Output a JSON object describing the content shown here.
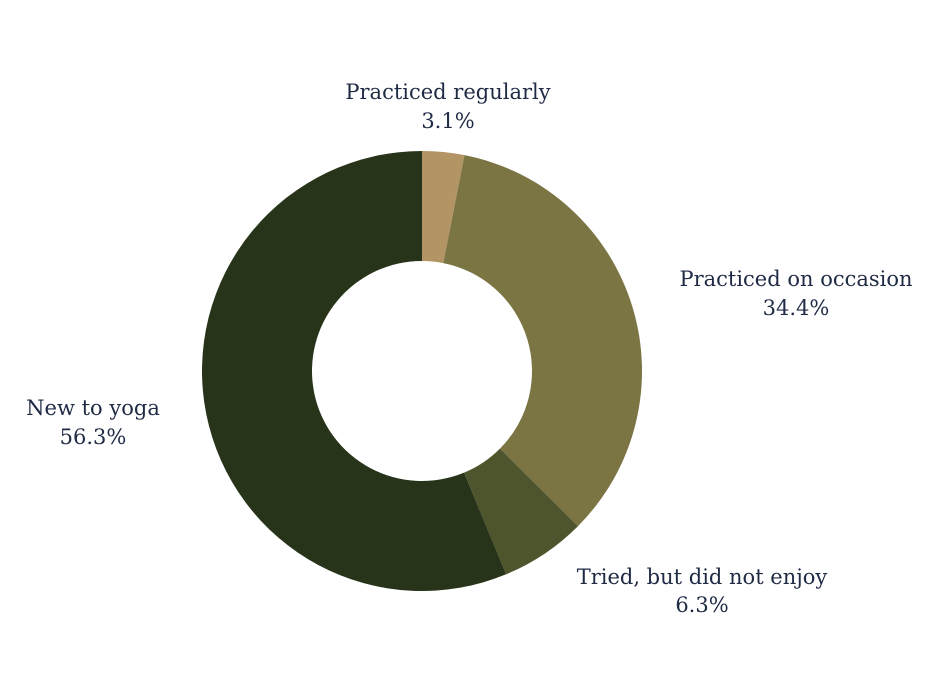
{
  "chart_data": {
    "type": "pie",
    "style": "donut",
    "start": "top",
    "direction": "clockwise",
    "slices": [
      {
        "label": "Practiced regularly",
        "value": 3.1,
        "value_label": "3.1%",
        "color": "#b39464"
      },
      {
        "label": "Practiced on occasion",
        "value": 34.4,
        "value_label": "34.4%",
        "color": "#7b7443"
      },
      {
        "label": "Tried, but did not enjoy",
        "value": 6.3,
        "value_label": "6.3%",
        "color": "#4e542c"
      },
      {
        "label": "New to yoga",
        "value": 56.3,
        "value_label": "56.3%",
        "color": "#27341a"
      }
    ],
    "text_color": "#1f2a44"
  }
}
